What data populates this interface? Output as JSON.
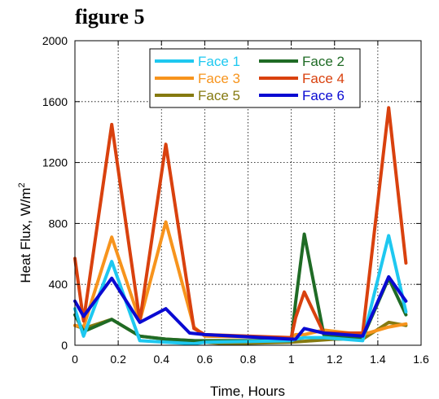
{
  "figure_label": "figure 5",
  "chart_data": {
    "type": "line",
    "xlabel": "Time, Hours",
    "ylabel": "Heat Flux, W/m",
    "ylabel_sup": "2",
    "xlim": [
      0,
      1.6
    ],
    "ylim": [
      0,
      2000
    ],
    "x_ticks": [
      "0",
      "0.2",
      "0.4",
      "0.6",
      "0.8",
      "1",
      "1.2",
      "1.4",
      "1.6"
    ],
    "y_ticks": [
      "0",
      "400",
      "800",
      "1200",
      "1600",
      "2000"
    ],
    "grid": true,
    "legend_position": "top",
    "series": [
      {
        "name": "Face 1",
        "color": "#1ec8f0",
        "x": [
          0,
          0.04,
          0.17,
          0.3,
          0.42,
          0.55,
          0.6,
          1.0,
          1.02,
          1.06,
          1.15,
          1.33,
          1.45,
          1.53
        ],
        "y": [
          240,
          60,
          550,
          30,
          20,
          10,
          20,
          30,
          40,
          50,
          50,
          30,
          720,
          220
        ]
      },
      {
        "name": "Face 2",
        "color": "#1f6b25",
        "x": [
          0,
          0.04,
          0.17,
          0.3,
          0.42,
          0.55,
          0.6,
          1.0,
          1.02,
          1.06,
          1.15,
          1.33,
          1.45,
          1.53
        ],
        "y": [
          200,
          90,
          170,
          60,
          40,
          30,
          30,
          30,
          280,
          730,
          70,
          50,
          440,
          200
        ]
      },
      {
        "name": "Face 3",
        "color": "#f7941d",
        "x": [
          0,
          0.04,
          0.17,
          0.3,
          0.42,
          0.55,
          0.6,
          1.0,
          1.02,
          1.06,
          1.15,
          1.33,
          1.45,
          1.53
        ],
        "y": [
          130,
          120,
          710,
          160,
          810,
          120,
          60,
          50,
          70,
          70,
          100,
          70,
          120,
          140
        ]
      },
      {
        "name": "Face 4",
        "color": "#d9410e",
        "x": [
          0,
          0.04,
          0.17,
          0.3,
          0.42,
          0.55,
          0.6,
          1.0,
          1.02,
          1.06,
          1.15,
          1.33,
          1.45,
          1.53
        ],
        "y": [
          570,
          160,
          1450,
          160,
          1320,
          110,
          70,
          50,
          180,
          350,
          80,
          80,
          1560,
          540
        ]
      },
      {
        "name": "Face 5",
        "color": "#857a10",
        "x": [
          0,
          0.04,
          0.17,
          0.3,
          0.42,
          0.55,
          0.6,
          0.7,
          1.0,
          1.1,
          1.2,
          1.33,
          1.45,
          1.53
        ],
        "y": [
          130,
          110,
          170,
          60,
          40,
          30,
          20,
          10,
          20,
          30,
          40,
          40,
          150,
          130
        ]
      },
      {
        "name": "Face 6",
        "color": "#0a0ad2",
        "x": [
          0,
          0.04,
          0.17,
          0.3,
          0.42,
          0.53,
          0.6,
          1.0,
          1.02,
          1.06,
          1.15,
          1.33,
          1.45,
          1.53
        ],
        "y": [
          290,
          190,
          440,
          150,
          240,
          80,
          70,
          40,
          40,
          110,
          80,
          60,
          450,
          290
        ]
      }
    ]
  }
}
